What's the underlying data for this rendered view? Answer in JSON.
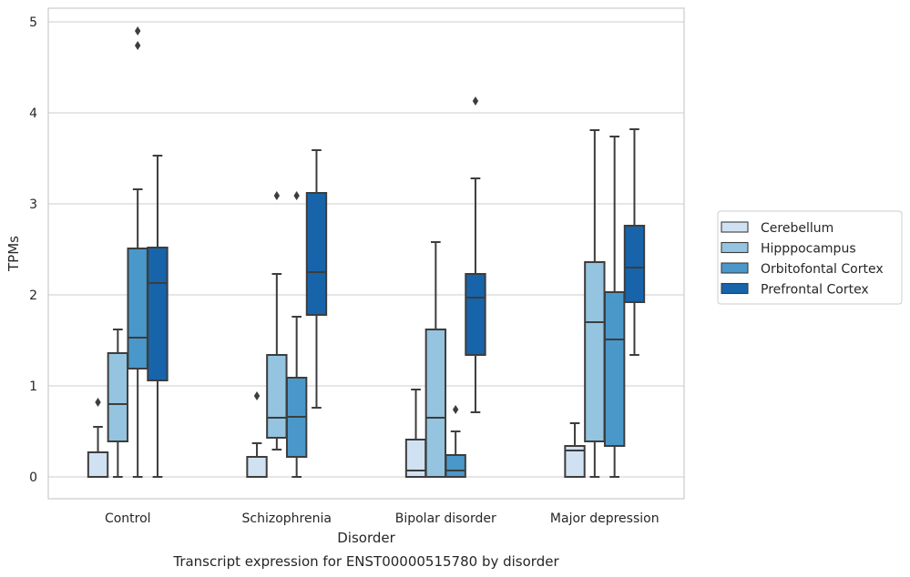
{
  "chart_data": {
    "type": "box",
    "title": "Transcript expression for ENST00000515780 by disorder",
    "xlabel": "Disorder",
    "ylabel": "TPMs",
    "ylim": [
      -0.24,
      5.15
    ],
    "yticks": [
      0,
      1,
      2,
      3,
      4,
      5
    ],
    "grid": true,
    "legend_position": "right",
    "categories": [
      "Control",
      "Schizophrenia",
      "Bipolar disorder",
      "Major depression"
    ],
    "series": [
      {
        "name": "Cerebellum",
        "color": "#d0e1f2",
        "boxes": [
          {
            "min": 0,
            "q1": 0,
            "median": 0,
            "q3": 0.27,
            "max": 0.55,
            "outliers": [
              0.82
            ]
          },
          {
            "min": 0,
            "q1": 0,
            "median": 0,
            "q3": 0.22,
            "max": 0.37,
            "outliers": [
              0.89
            ]
          },
          {
            "min": 0,
            "q1": 0,
            "median": 0.07,
            "q3": 0.41,
            "max": 0.96,
            "outliers": []
          },
          {
            "min": 0,
            "q1": 0,
            "median": 0.29,
            "q3": 0.34,
            "max": 0.59,
            "outliers": []
          }
        ]
      },
      {
        "name": "Hipppocampus",
        "color": "#94c4df",
        "boxes": [
          {
            "min": 0,
            "q1": 0.39,
            "median": 0.8,
            "q3": 1.36,
            "max": 1.62,
            "outliers": []
          },
          {
            "min": 0.3,
            "q1": 0.43,
            "median": 0.65,
            "q3": 1.34,
            "max": 2.23,
            "outliers": [
              3.09
            ]
          },
          {
            "min": 0,
            "q1": 0,
            "median": 0.65,
            "q3": 1.62,
            "max": 2.58,
            "outliers": []
          },
          {
            "min": 0,
            "q1": 0.39,
            "median": 1.7,
            "q3": 2.36,
            "max": 3.81,
            "outliers": []
          }
        ]
      },
      {
        "name": "Orbitofontal Cortex",
        "color": "#4a98c9",
        "boxes": [
          {
            "min": 0,
            "q1": 1.19,
            "median": 1.53,
            "q3": 2.51,
            "max": 3.16,
            "outliers": [
              4.74,
              4.9
            ]
          },
          {
            "min": 0,
            "q1": 0.22,
            "median": 0.66,
            "q3": 1.09,
            "max": 1.76,
            "outliers": [
              3.09
            ]
          },
          {
            "min": 0,
            "q1": 0,
            "median": 0.07,
            "q3": 0.24,
            "max": 0.5,
            "outliers": [
              0.74
            ]
          },
          {
            "min": 0,
            "q1": 0.34,
            "median": 1.51,
            "q3": 2.03,
            "max": 3.74,
            "outliers": []
          }
        ]
      },
      {
        "name": "Prefrontal Cortex",
        "color": "#1764ab",
        "boxes": [
          {
            "min": 0,
            "q1": 1.06,
            "median": 2.13,
            "q3": 2.52,
            "max": 3.53,
            "outliers": []
          },
          {
            "min": 0.76,
            "q1": 1.78,
            "median": 2.25,
            "q3": 3.12,
            "max": 3.59,
            "outliers": []
          },
          {
            "min": 0.71,
            "q1": 1.34,
            "median": 1.97,
            "q3": 2.23,
            "max": 3.28,
            "outliers": [
              4.13
            ]
          },
          {
            "min": 1.34,
            "q1": 1.92,
            "median": 2.3,
            "q3": 2.76,
            "max": 3.82,
            "outliers": []
          }
        ]
      }
    ]
  }
}
